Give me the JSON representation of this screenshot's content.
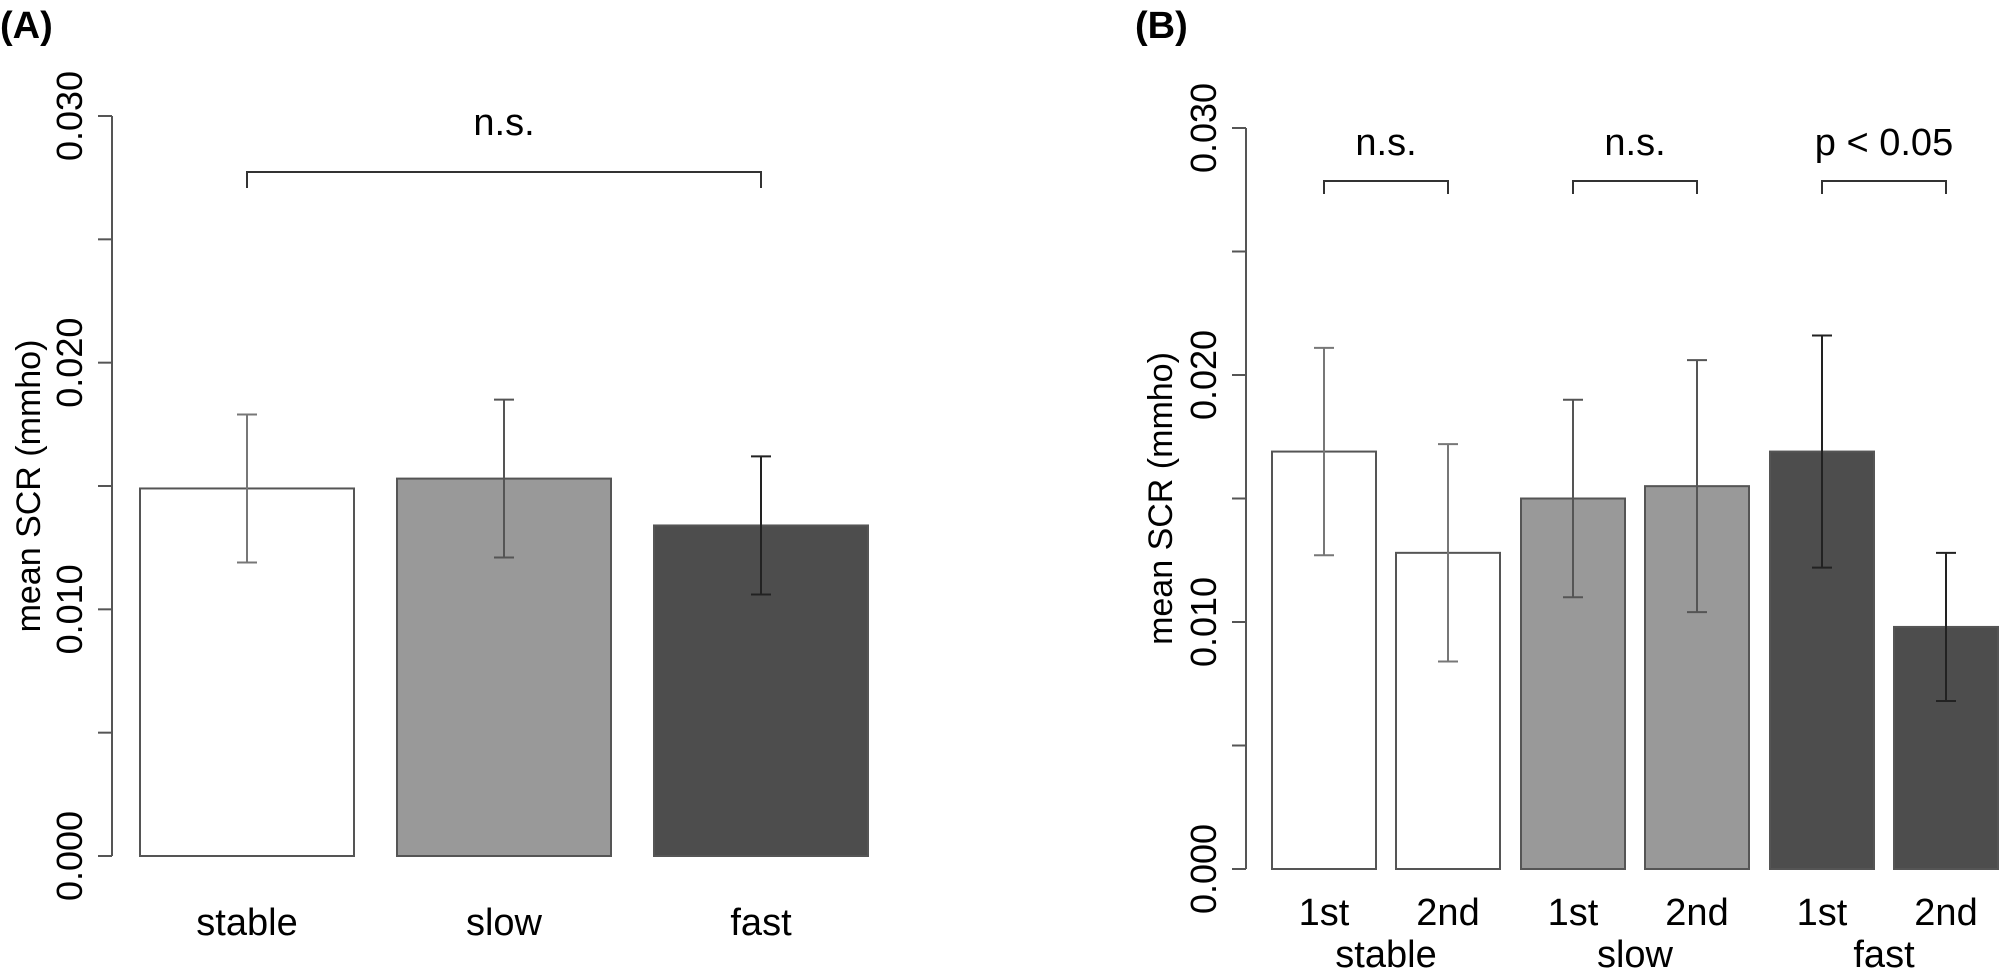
{
  "chart_data": [
    {
      "panel": "(A)",
      "type": "bar",
      "xlabel": "",
      "ylabel": "mean SCR (mmho)",
      "ylim": [
        0,
        0.03
      ],
      "yticks": [
        0,
        0.005,
        0.01,
        0.015,
        0.02,
        0.025,
        0.03
      ],
      "ytick_labels": [
        "0.000",
        "0.010",
        "0.020",
        "0.030"
      ],
      "categories": [
        "stable",
        "slow",
        "fast"
      ],
      "values": [
        0.0149,
        0.0153,
        0.0134
      ],
      "errors": [
        0.003,
        0.0032,
        0.0028
      ],
      "colors": [
        "#ffffff",
        "#999999",
        "#4d4d4d"
      ],
      "annotations": [
        {
          "label": "n.s.",
          "from": 0,
          "to": 2
        }
      ]
    },
    {
      "panel": "(B)",
      "type": "bar",
      "xlabel": "",
      "ylabel": "mean SCR (mmho)",
      "ylim": [
        0,
        0.03
      ],
      "yticks": [
        0,
        0.005,
        0.01,
        0.015,
        0.02,
        0.025,
        0.03
      ],
      "ytick_labels": [
        "0.000",
        "0.010",
        "0.020",
        "0.030"
      ],
      "categories": [
        "1st",
        "2nd",
        "1st",
        "2nd",
        "1st",
        "2nd"
      ],
      "groups": [
        "stable",
        "slow",
        "fast"
      ],
      "values": [
        0.0169,
        0.0128,
        0.015,
        0.0155,
        0.0169,
        0.0098
      ],
      "errors": [
        0.0042,
        0.0044,
        0.004,
        0.0051,
        0.0047,
        0.003
      ],
      "colors": [
        "#ffffff",
        "#ffffff",
        "#999999",
        "#999999",
        "#4d4d4d",
        "#4d4d4d"
      ],
      "annotations": [
        {
          "label": "n.s.",
          "from": 0,
          "to": 1
        },
        {
          "label": "n.s.",
          "from": 2,
          "to": 3
        },
        {
          "label": "p < 0.05",
          "from": 4,
          "to": 5
        }
      ]
    }
  ]
}
